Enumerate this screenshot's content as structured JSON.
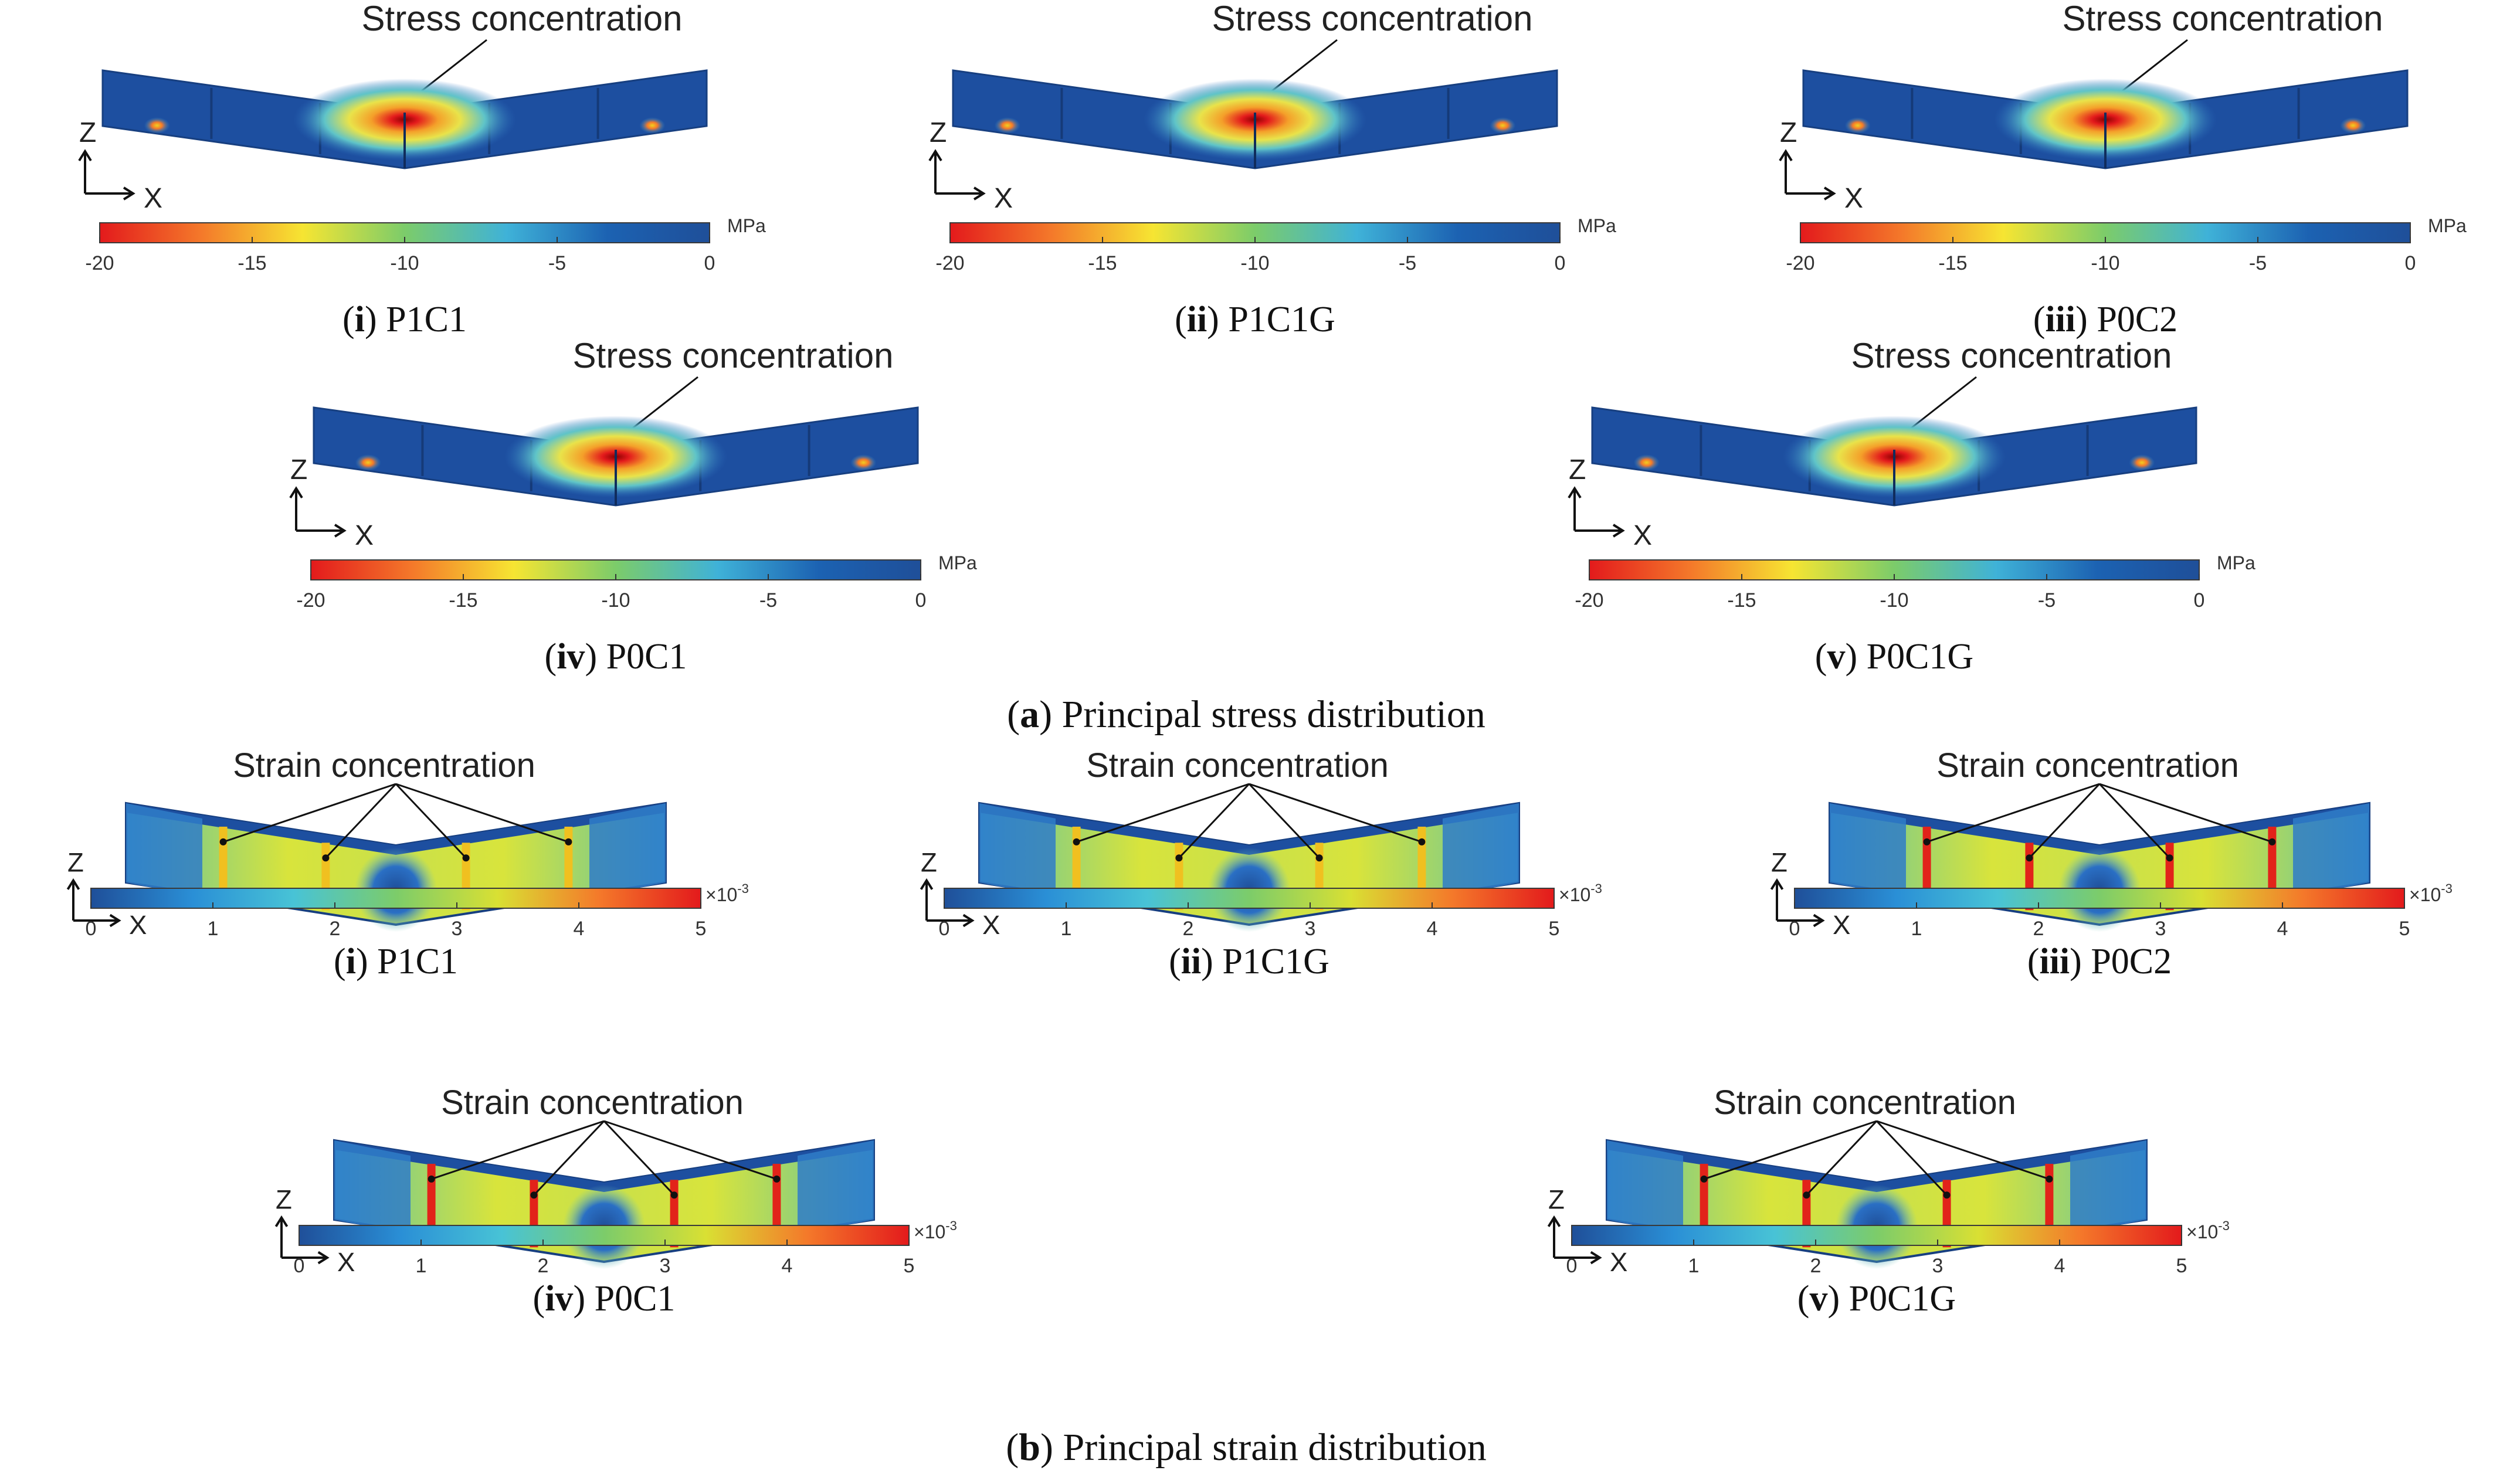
{
  "figure": {
    "section_a": {
      "letter": "a",
      "title": " Principal stress distribution",
      "annotation": "Stress concentration",
      "unit": "MPa",
      "ticks": [
        "-20",
        "-15",
        "-10",
        "-5",
        "0"
      ],
      "gradient": [
        "#e31a1c",
        "#f4792a",
        "#f6e532",
        "#7ccc6a",
        "#3fb2d8",
        "#1c62b2",
        "#1f4f99"
      ],
      "panels": [
        {
          "id": "i",
          "label": " P1C1"
        },
        {
          "id": "ii",
          "label": " P1C1G"
        },
        {
          "id": "iii",
          "label": " P0C2"
        },
        {
          "id": "iv",
          "label": " P0C1"
        },
        {
          "id": "v",
          "label": " P0C1G"
        }
      ]
    },
    "section_b": {
      "letter": "b",
      "title": " Principal strain distribution",
      "annotation": "Strain concentration",
      "unit_prefix": "×10",
      "unit_exp": "-3",
      "ticks": [
        "0",
        "1",
        "2",
        "3",
        "4",
        "5"
      ],
      "gradient": [
        "#1f4f99",
        "#2a8fd6",
        "#48c3d6",
        "#7ccc6a",
        "#d9e033",
        "#f4792a",
        "#e31a1c"
      ],
      "panels": [
        {
          "id": "i",
          "label": " P1C1"
        },
        {
          "id": "ii",
          "label": " P1C1G"
        },
        {
          "id": "iii",
          "label": " P0C2"
        },
        {
          "id": "iv",
          "label": " P0C1"
        },
        {
          "id": "v",
          "label": " P0C1G"
        }
      ]
    },
    "axes": {
      "vertical": "Z",
      "horizontal": "X"
    },
    "colors": {
      "beam_blue": "#1d4fa0",
      "beam_edge": "#173f80",
      "stress_hot": "#d81b1b",
      "strain_body": "#e2e23a"
    }
  }
}
